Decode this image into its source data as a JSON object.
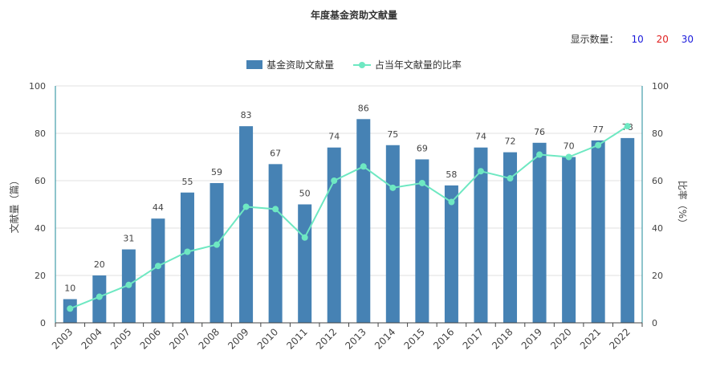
{
  "title": "年度基金资助文献量",
  "display_count": {
    "label": "显示数量：",
    "options": [
      {
        "label": "10",
        "color": "#1a1adb"
      },
      {
        "label": "20",
        "color": "#e02020"
      },
      {
        "label": "30",
        "color": "#1a1adb"
      }
    ]
  },
  "legend": {
    "bar_label": "基金资助文献量",
    "line_label": "占当年文献量的比率"
  },
  "colors": {
    "bar": "#4682b4",
    "line": "#6ee8c2",
    "axis": "#1e8a9a",
    "grid": "#e0e0e0"
  },
  "chart_data": {
    "type": "bar",
    "categories": [
      "2003",
      "2004",
      "2005",
      "2006",
      "2007",
      "2008",
      "2009",
      "2010",
      "2011",
      "2012",
      "2013",
      "2014",
      "2015",
      "2016",
      "2017",
      "2018",
      "2019",
      "2020",
      "2021",
      "2022"
    ],
    "series": [
      {
        "name": "基金资助文献量",
        "type": "bar",
        "axis": "left",
        "values": [
          10,
          20,
          31,
          44,
          55,
          59,
          83,
          67,
          50,
          74,
          86,
          75,
          69,
          58,
          74,
          72,
          76,
          70,
          77,
          78
        ]
      },
      {
        "name": "占当年文献量的比率",
        "type": "line",
        "axis": "right",
        "values": [
          6,
          11,
          16,
          24,
          30,
          33,
          49,
          48,
          36,
          60,
          66,
          57,
          59,
          51,
          64,
          61,
          71,
          70,
          75,
          83
        ]
      }
    ],
    "ylabel": "文献量（篇）",
    "ylabel_right": "比率（%）",
    "ylim": [
      0,
      100
    ],
    "ylim_right": [
      0,
      100
    ],
    "yticks": [
      "0",
      "20",
      "40",
      "60",
      "80",
      "100"
    ],
    "grid": true,
    "legend_position": "top-center"
  }
}
